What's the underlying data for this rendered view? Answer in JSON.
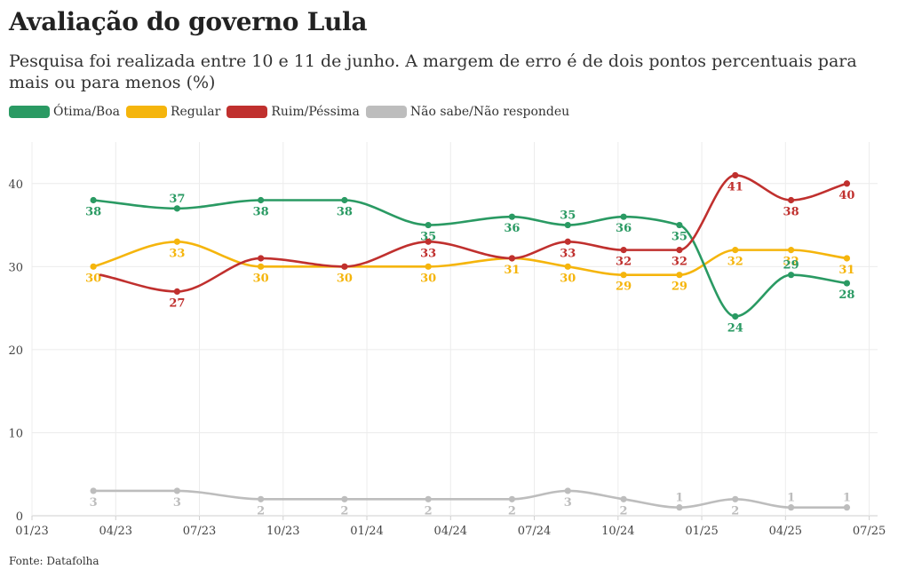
{
  "chart_data": {
    "type": "line",
    "title": "Avaliação do governo Lula",
    "subtitle": "Pesquisa foi realizada entre 10 e 11 de junho. A margem de erro é de dois pontos percentuais para mais ou para menos (%)",
    "xlabel": "",
    "ylabel": "",
    "ylim": [
      0,
      45
    ],
    "yticks": [
      0,
      10,
      20,
      30,
      40
    ],
    "grid": true,
    "legend_position": "top-left",
    "x_ticks": [
      {
        "label": "01/23",
        "t": 0
      },
      {
        "label": "04/23",
        "t": 3
      },
      {
        "label": "07/23",
        "t": 6
      },
      {
        "label": "10/23",
        "t": 9
      },
      {
        "label": "01/24",
        "t": 12
      },
      {
        "label": "04/24",
        "t": 15
      },
      {
        "label": "07/24",
        "t": 18
      },
      {
        "label": "10/24",
        "t": 21
      },
      {
        "label": "01/25",
        "t": 24
      },
      {
        "label": "04/25",
        "t": 27
      },
      {
        "label": "07/25",
        "t": 30
      }
    ],
    "x": [
      2.2,
      5.2,
      8.2,
      11.2,
      14.2,
      17.2,
      19.2,
      21.2,
      23.2,
      25.2,
      27.2,
      29.2
    ],
    "series": [
      {
        "name": "Ótima/Boa",
        "color": "#2a9a63",
        "values": [
          38,
          37,
          38,
          38,
          35,
          36,
          35,
          36,
          35,
          24,
          29,
          28
        ],
        "label_pos": [
          "below",
          "above",
          "below",
          "below",
          "below",
          "below",
          "above",
          "below",
          "below",
          "below",
          "above",
          "below"
        ]
      },
      {
        "name": "Regular",
        "color": "#f5b50c",
        "values": [
          30,
          33,
          30,
          30,
          30,
          31,
          30,
          29,
          29,
          32,
          32,
          31
        ],
        "label_pos": [
          "below",
          "below",
          "below",
          "below",
          "below",
          "below",
          "below",
          "below",
          "below",
          "below",
          "below",
          "below"
        ]
      },
      {
        "name": "Ruim/Péssima",
        "color": "#c0302e",
        "values": [
          null,
          27,
          31,
          30,
          33,
          31,
          33,
          32,
          32,
          41,
          38,
          40
        ],
        "start_value": 29,
        "label_pos": [
          "none",
          "below",
          "none",
          "none",
          "below",
          "none",
          "below",
          "below",
          "below",
          "below",
          "below",
          "below"
        ]
      },
      {
        "name": "Não sabe/Não respondeu",
        "color": "#bdbdbd",
        "values": [
          3,
          3,
          2,
          2,
          2,
          2,
          3,
          2,
          1,
          2,
          1,
          1
        ],
        "label_pos": [
          "below",
          "below",
          "below",
          "below",
          "below",
          "below",
          "below",
          "below",
          "above",
          "below",
          "above",
          "above"
        ]
      }
    ],
    "source": "Fonte: Datafolha"
  }
}
